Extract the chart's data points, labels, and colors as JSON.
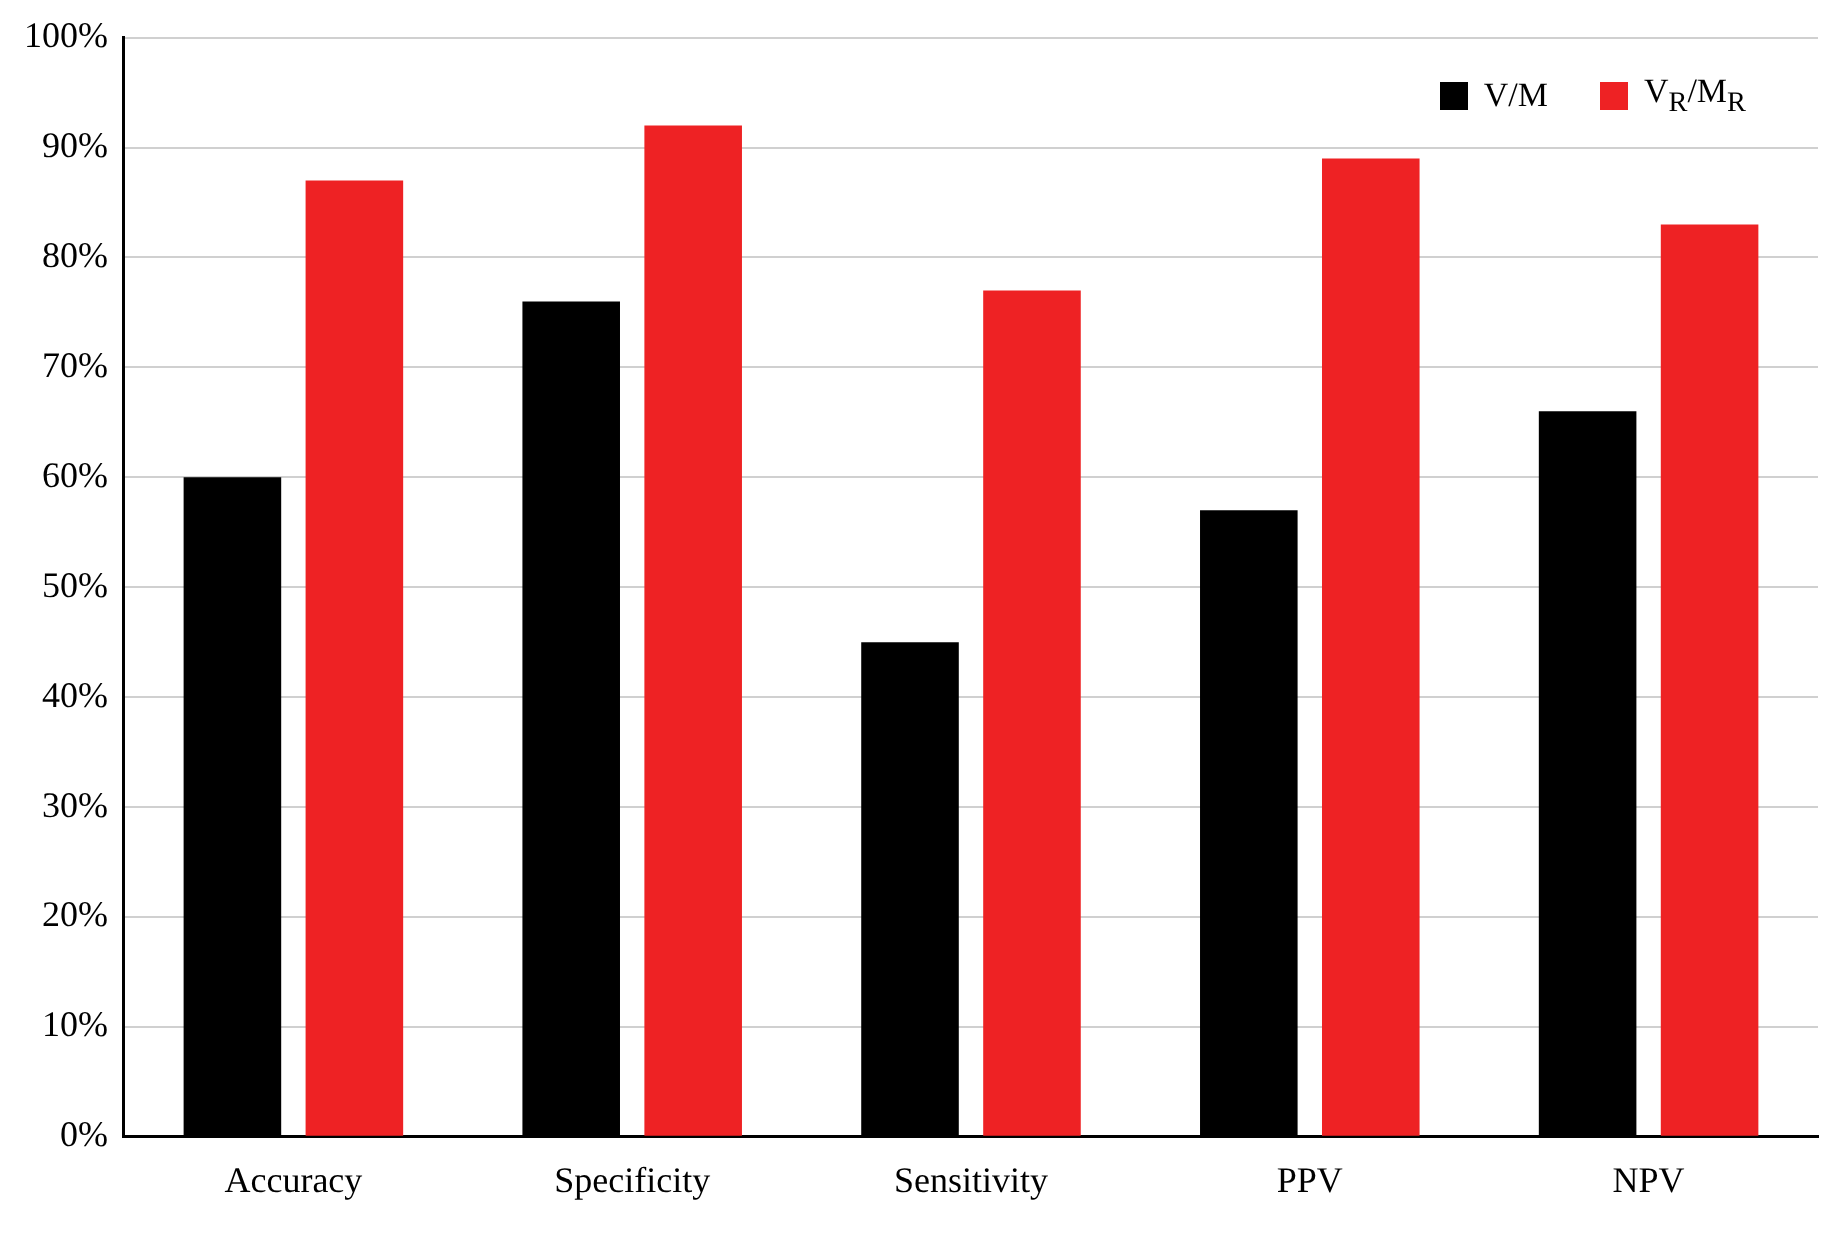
{
  "chart_data": {
    "type": "bar",
    "categories": [
      "Accuracy",
      "Specificity",
      "Sensitivity",
      "PPV",
      "NPV"
    ],
    "series": [
      {
        "name": "V/M",
        "color": "#000000",
        "values": [
          60,
          76,
          45,
          57,
          66
        ]
      },
      {
        "name": "V$_{R}$/M$_{R}$",
        "color": "#ee2224",
        "values": [
          87,
          92,
          77,
          89,
          83
        ]
      }
    ],
    "ylim": [
      0,
      100
    ],
    "yticks": [
      {
        "value": 0,
        "label": "0%"
      },
      {
        "value": 10,
        "label": "10%"
      },
      {
        "value": 20,
        "label": "20%"
      },
      {
        "value": 30,
        "label": "30%"
      },
      {
        "value": 40,
        "label": "40%"
      },
      {
        "value": 50,
        "label": "50%"
      },
      {
        "value": 60,
        "label": "60%"
      },
      {
        "value": 70,
        "label": "70%"
      },
      {
        "value": 80,
        "label": "80%"
      },
      {
        "value": 90,
        "label": "90%"
      },
      {
        "value": 100,
        "label": "100%"
      }
    ],
    "grid": "y",
    "legend": "top right"
  }
}
